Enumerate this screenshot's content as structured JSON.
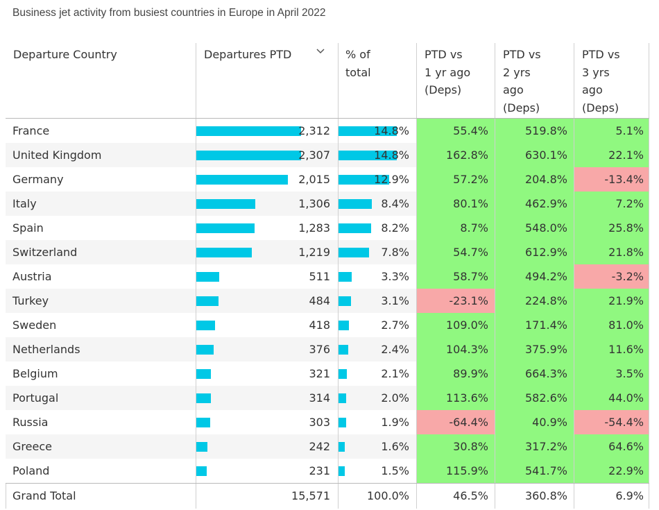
{
  "title": "Business jet activity from busiest countries in Europe in April 2022",
  "headers": {
    "country": "Departure Country",
    "departures": "Departures PTD",
    "pct_line1": "% of",
    "pct_line2": "total",
    "y1_line1": "PTD vs",
    "y1_line2": "1 yr ago",
    "y1_line3": "(Deps)",
    "y2_line1": "PTD vs",
    "y2_line2": "2 yrs",
    "y2_line3": "ago",
    "y2_line4": "(Deps)",
    "y3_line1": "PTD vs",
    "y3_line2": "3 yrs",
    "y3_line3": "ago",
    "y3_line4": "(Deps)"
  },
  "colors": {
    "bar": "#00c8e6",
    "positive": "#90f880",
    "negative": "#f8a8a8"
  },
  "icons": {
    "sort": "chevron-down-icon"
  },
  "chart_data": {
    "type": "table",
    "title": "Business jet activity from busiest countries in Europe in April 2022",
    "columns": [
      "Departure Country",
      "Departures PTD",
      "% of total",
      "PTD vs 1 yr ago (Deps)",
      "PTD vs 2 yrs ago (Deps)",
      "PTD vs 3 yrs ago (Deps)"
    ],
    "rows": [
      {
        "country": "France",
        "departures": 2312,
        "departures_text": "2,312",
        "pct": 14.8,
        "pct_text": "14.8%",
        "y1": 55.4,
        "y1_text": "55.4%",
        "y2": 519.8,
        "y2_text": "519.8%",
        "y3": 5.1,
        "y3_text": "5.1%"
      },
      {
        "country": "United Kingdom",
        "departures": 2307,
        "departures_text": "2,307",
        "pct": 14.8,
        "pct_text": "14.8%",
        "y1": 162.8,
        "y1_text": "162.8%",
        "y2": 630.1,
        "y2_text": "630.1%",
        "y3": 22.1,
        "y3_text": "22.1%"
      },
      {
        "country": "Germany",
        "departures": 2015,
        "departures_text": "2,015",
        "pct": 12.9,
        "pct_text": "12.9%",
        "y1": 57.2,
        "y1_text": "57.2%",
        "y2": 204.8,
        "y2_text": "204.8%",
        "y3": -13.4,
        "y3_text": "-13.4%"
      },
      {
        "country": "Italy",
        "departures": 1306,
        "departures_text": "1,306",
        "pct": 8.4,
        "pct_text": "8.4%",
        "y1": 80.1,
        "y1_text": "80.1%",
        "y2": 462.9,
        "y2_text": "462.9%",
        "y3": 7.2,
        "y3_text": "7.2%"
      },
      {
        "country": "Spain",
        "departures": 1283,
        "departures_text": "1,283",
        "pct": 8.2,
        "pct_text": "8.2%",
        "y1": 8.7,
        "y1_text": "8.7%",
        "y2": 548.0,
        "y2_text": "548.0%",
        "y3": 25.8,
        "y3_text": "25.8%"
      },
      {
        "country": "Switzerland",
        "departures": 1219,
        "departures_text": "1,219",
        "pct": 7.8,
        "pct_text": "7.8%",
        "y1": 54.7,
        "y1_text": "54.7%",
        "y2": 612.9,
        "y2_text": "612.9%",
        "y3": 21.8,
        "y3_text": "21.8%"
      },
      {
        "country": "Austria",
        "departures": 511,
        "departures_text": "511",
        "pct": 3.3,
        "pct_text": "3.3%",
        "y1": 58.7,
        "y1_text": "58.7%",
        "y2": 494.2,
        "y2_text": "494.2%",
        "y3": -3.2,
        "y3_text": "-3.2%"
      },
      {
        "country": "Turkey",
        "departures": 484,
        "departures_text": "484",
        "pct": 3.1,
        "pct_text": "3.1%",
        "y1": -23.1,
        "y1_text": "-23.1%",
        "y2": 224.8,
        "y2_text": "224.8%",
        "y3": 21.9,
        "y3_text": "21.9%"
      },
      {
        "country": "Sweden",
        "departures": 418,
        "departures_text": "418",
        "pct": 2.7,
        "pct_text": "2.7%",
        "y1": 109.0,
        "y1_text": "109.0%",
        "y2": 171.4,
        "y2_text": "171.4%",
        "y3": 81.0,
        "y3_text": "81.0%"
      },
      {
        "country": "Netherlands",
        "departures": 376,
        "departures_text": "376",
        "pct": 2.4,
        "pct_text": "2.4%",
        "y1": 104.3,
        "y1_text": "104.3%",
        "y2": 375.9,
        "y2_text": "375.9%",
        "y3": 11.6,
        "y3_text": "11.6%"
      },
      {
        "country": "Belgium",
        "departures": 321,
        "departures_text": "321",
        "pct": 2.1,
        "pct_text": "2.1%",
        "y1": 89.9,
        "y1_text": "89.9%",
        "y2": 664.3,
        "y2_text": "664.3%",
        "y3": 3.5,
        "y3_text": "3.5%"
      },
      {
        "country": "Portugal",
        "departures": 314,
        "departures_text": "314",
        "pct": 2.0,
        "pct_text": "2.0%",
        "y1": 113.6,
        "y1_text": "113.6%",
        "y2": 582.6,
        "y2_text": "582.6%",
        "y3": 44.0,
        "y3_text": "44.0%"
      },
      {
        "country": "Russia",
        "departures": 303,
        "departures_text": "303",
        "pct": 1.9,
        "pct_text": "1.9%",
        "y1": -64.4,
        "y1_text": "-64.4%",
        "y2": 40.9,
        "y2_text": "40.9%",
        "y3": -54.4,
        "y3_text": "-54.4%"
      },
      {
        "country": "Greece",
        "departures": 242,
        "departures_text": "242",
        "pct": 1.6,
        "pct_text": "1.6%",
        "y1": 30.8,
        "y1_text": "30.8%",
        "y2": 317.2,
        "y2_text": "317.2%",
        "y3": 64.6,
        "y3_text": "64.6%"
      },
      {
        "country": "Poland",
        "departures": 231,
        "departures_text": "231",
        "pct": 1.5,
        "pct_text": "1.5%",
        "y1": 115.9,
        "y1_text": "115.9%",
        "y2": 541.7,
        "y2_text": "541.7%",
        "y3": 22.9,
        "y3_text": "22.9%"
      }
    ],
    "total": {
      "label": "Grand Total",
      "departures_text": "15,571",
      "pct_text": "100.0%",
      "y1_text": "46.5%",
      "y2_text": "360.8%",
      "y3_text": "6.9%"
    }
  }
}
